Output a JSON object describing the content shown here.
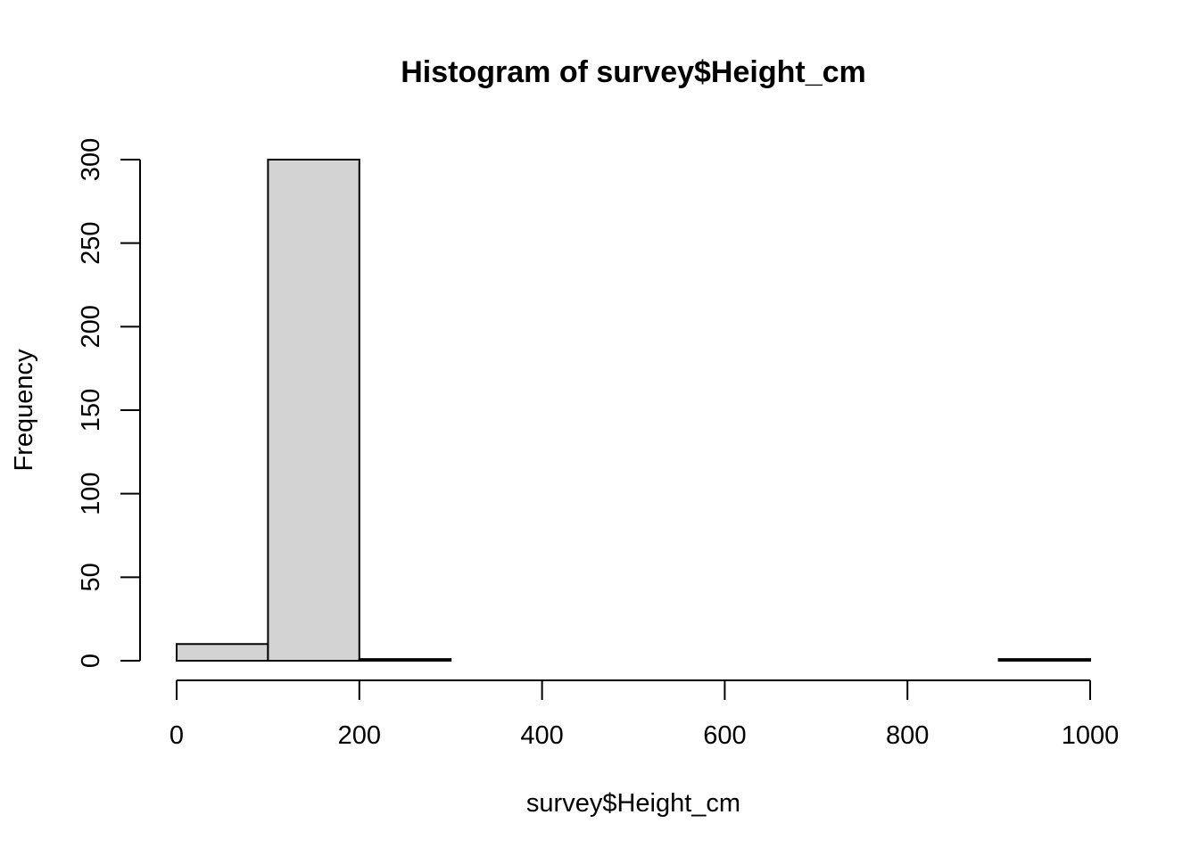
{
  "chart_data": {
    "type": "bar",
    "title": "Histogram of survey$Height_cm",
    "xlabel": "survey$Height_cm",
    "ylabel": "Frequency",
    "bins": [
      {
        "start": 0,
        "end": 100,
        "count": 10
      },
      {
        "start": 100,
        "end": 200,
        "count": 300
      },
      {
        "start": 200,
        "end": 300,
        "count": 1
      },
      {
        "start": 300,
        "end": 400,
        "count": 0
      },
      {
        "start": 400,
        "end": 500,
        "count": 0
      },
      {
        "start": 500,
        "end": 600,
        "count": 0
      },
      {
        "start": 600,
        "end": 700,
        "count": 0
      },
      {
        "start": 700,
        "end": 800,
        "count": 0
      },
      {
        "start": 800,
        "end": 900,
        "count": 0
      },
      {
        "start": 900,
        "end": 1000,
        "count": 1
      }
    ],
    "xlim": [
      0,
      1000
    ],
    "ylim": [
      0,
      300
    ],
    "x_ticks": [
      0,
      200,
      400,
      600,
      800,
      1000
    ],
    "y_ticks": [
      0,
      50,
      100,
      150,
      200,
      250,
      300
    ],
    "grid": false,
    "legend": "none",
    "bar_fill": "#d3d3d3",
    "bar_stroke": "#000000"
  }
}
